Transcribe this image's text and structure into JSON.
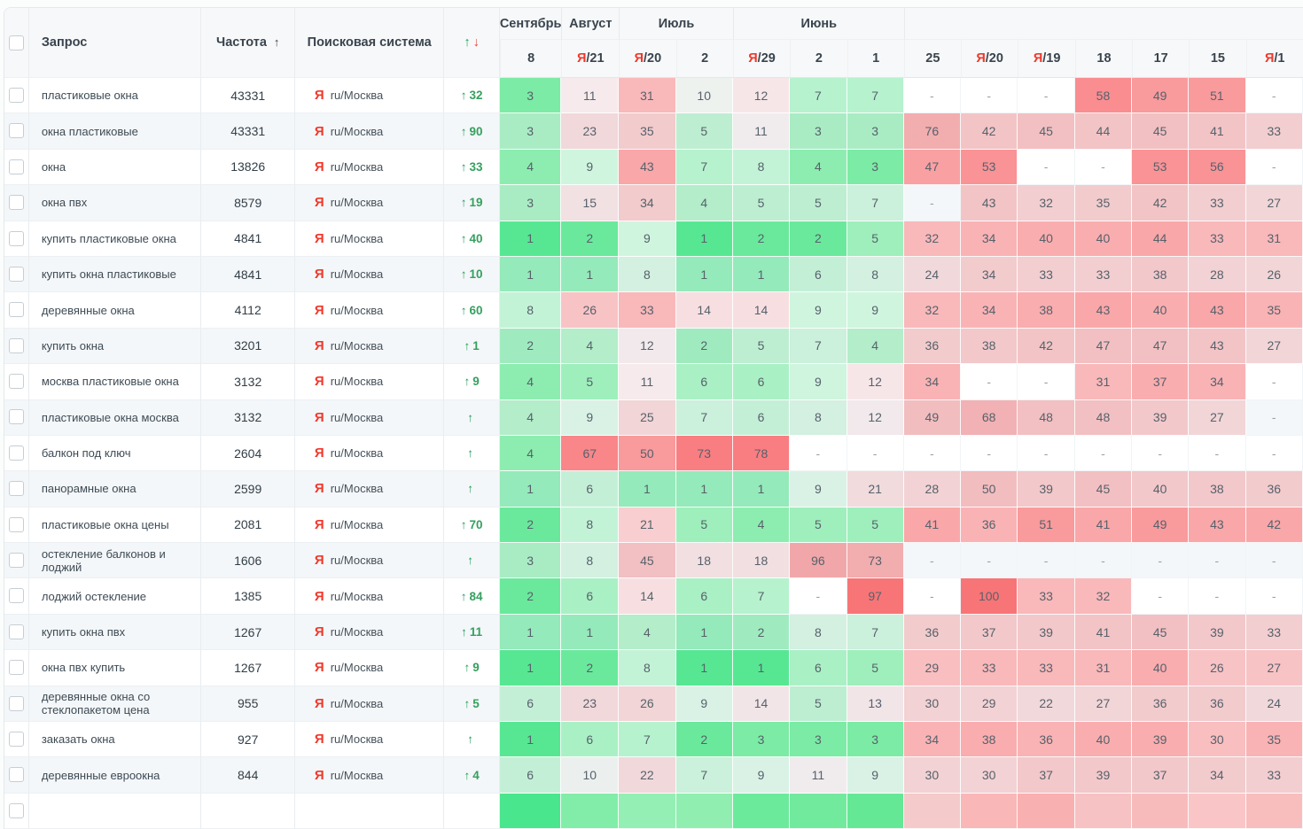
{
  "table": {
    "columns": {
      "query": "Запрос",
      "frequency": "Частота",
      "engine": "Поисковая система"
    },
    "sort": {
      "frequency_arrow": "↑",
      "change_up": "↑",
      "change_down": "↓"
    },
    "engine_icon": "Я",
    "colors": {
      "best_green": "#57e793",
      "worst_red": "#f87577",
      "yandex_red": "#f0382b",
      "change_green": "#23a05a",
      "sort_down_red": "#e8483c",
      "stripe": "#f4f7f9"
    },
    "heat_stops": [
      [
        1,
        "#57e793"
      ],
      [
        2,
        "#6ae99c"
      ],
      [
        3,
        "#7ceba5"
      ],
      [
        4,
        "#8dedb0"
      ],
      [
        5,
        "#9eefbc"
      ],
      [
        6,
        "#aaf0c5"
      ],
      [
        7,
        "#b6f2ce"
      ],
      [
        8,
        "#c3f3d7"
      ],
      [
        9,
        "#cff5df"
      ],
      [
        10,
        "#edf2ee"
      ],
      [
        11,
        "#f6eaec"
      ],
      [
        12,
        "#f7e6e8"
      ],
      [
        14,
        "#f7dfe1"
      ],
      [
        16,
        "#f8d9db"
      ],
      [
        18,
        "#f8d4d6"
      ],
      [
        21,
        "#f8ced0"
      ],
      [
        24,
        "#f8c8ca"
      ],
      [
        27,
        "#f8c3c5"
      ],
      [
        30,
        "#f9bec0"
      ],
      [
        33,
        "#f9b8ba"
      ],
      [
        36,
        "#f9b3b5"
      ],
      [
        40,
        "#f9adaf"
      ],
      [
        44,
        "#f9a7a9"
      ],
      [
        48,
        "#f9a0a2"
      ],
      [
        52,
        "#f99a9c"
      ],
      [
        56,
        "#f99396"
      ],
      [
        60,
        "#f98d90"
      ],
      [
        68,
        "#f98689"
      ],
      [
        78,
        "#f97e81"
      ],
      [
        200,
        "#f87577"
      ]
    ],
    "months": [
      {
        "label": "Сентябрь",
        "span": 1
      },
      {
        "label": "Август",
        "span": 1
      },
      {
        "label": "Июль",
        "span": 2
      },
      {
        "label": "Июнь",
        "span": 3
      },
      {
        "label": "",
        "span": 7
      }
    ],
    "dates": [
      {
        "update": false,
        "day": "8"
      },
      {
        "update": true,
        "day": "21"
      },
      {
        "update": true,
        "day": "20"
      },
      {
        "update": false,
        "day": "2"
      },
      {
        "update": true,
        "day": "29"
      },
      {
        "update": false,
        "day": "2"
      },
      {
        "update": false,
        "day": "1"
      },
      {
        "update": false,
        "day": "25"
      },
      {
        "update": true,
        "day": "20"
      },
      {
        "update": true,
        "day": "19"
      },
      {
        "update": false,
        "day": "18"
      },
      {
        "update": false,
        "day": "17"
      },
      {
        "update": false,
        "day": "15"
      },
      {
        "update": true,
        "day": "1"
      }
    ],
    "rows": [
      {
        "query": "пластиковые окна",
        "frequency": "43331",
        "engine": "ru/Москва",
        "change": "32",
        "positions": [
          "3",
          "11",
          "31",
          "10",
          "12",
          "7",
          "7",
          "-",
          "-",
          "-",
          "58",
          "49",
          "51",
          "-"
        ]
      },
      {
        "query": "окна пластиковые",
        "frequency": "43331",
        "engine": "ru/Москва",
        "change": "90",
        "positions": [
          "3",
          "23",
          "35",
          "5",
          "11",
          "3",
          "3",
          "76",
          "42",
          "45",
          "44",
          "45",
          "41",
          "33"
        ]
      },
      {
        "query": "окна",
        "frequency": "13826",
        "engine": "ru/Москва",
        "change": "33",
        "positions": [
          "4",
          "9",
          "43",
          "7",
          "8",
          "4",
          "3",
          "47",
          "53",
          "-",
          "-",
          "53",
          "56",
          "-"
        ]
      },
      {
        "query": "окна пвх",
        "frequency": "8579",
        "engine": "ru/Москва",
        "change": "19",
        "positions": [
          "3",
          "15",
          "34",
          "4",
          "5",
          "5",
          "7",
          "-",
          "43",
          "32",
          "35",
          "42",
          "33",
          "27"
        ]
      },
      {
        "query": "купить пластиковые окна",
        "frequency": "4841",
        "engine": "ru/Москва",
        "change": "40",
        "positions": [
          "1",
          "2",
          "9",
          "1",
          "2",
          "2",
          "5",
          "32",
          "34",
          "40",
          "40",
          "44",
          "33",
          "31"
        ]
      },
      {
        "query": "купить окна пластиковые",
        "frequency": "4841",
        "engine": "ru/Москва",
        "change": "10",
        "positions": [
          "1",
          "1",
          "8",
          "1",
          "1",
          "6",
          "8",
          "24",
          "34",
          "33",
          "33",
          "38",
          "28",
          "26"
        ]
      },
      {
        "query": "деревянные окна",
        "frequency": "4112",
        "engine": "ru/Москва",
        "change": "60",
        "positions": [
          "8",
          "26",
          "33",
          "14",
          "14",
          "9",
          "9",
          "32",
          "34",
          "38",
          "43",
          "40",
          "43",
          "35"
        ]
      },
      {
        "query": "купить окна",
        "frequency": "3201",
        "engine": "ru/Москва",
        "change": "1",
        "positions": [
          "2",
          "4",
          "12",
          "2",
          "5",
          "7",
          "4",
          "36",
          "38",
          "42",
          "47",
          "47",
          "43",
          "27"
        ]
      },
      {
        "query": "москва пластиковые окна",
        "frequency": "3132",
        "engine": "ru/Москва",
        "change": "9",
        "positions": [
          "4",
          "5",
          "11",
          "6",
          "6",
          "9",
          "12",
          "34",
          "-",
          "-",
          "31",
          "37",
          "34",
          "-"
        ]
      },
      {
        "query": "пластиковые окна москва",
        "frequency": "3132",
        "engine": "ru/Москва",
        "change": "",
        "positions": [
          "4",
          "9",
          "25",
          "7",
          "6",
          "8",
          "12",
          "49",
          "68",
          "48",
          "48",
          "39",
          "27",
          "-"
        ]
      },
      {
        "query": "балкон под ключ",
        "frequency": "2604",
        "engine": "ru/Москва",
        "change": "",
        "positions": [
          "4",
          "67",
          "50",
          "73",
          "78",
          "-",
          "-",
          "-",
          "-",
          "-",
          "-",
          "-",
          "-",
          "-"
        ]
      },
      {
        "query": "панорамные окна",
        "frequency": "2599",
        "engine": "ru/Москва",
        "change": "",
        "positions": [
          "1",
          "6",
          "1",
          "1",
          "1",
          "9",
          "21",
          "28",
          "50",
          "39",
          "45",
          "40",
          "38",
          "36"
        ]
      },
      {
        "query": "пластиковые окна цены",
        "frequency": "2081",
        "engine": "ru/Москва",
        "change": "70",
        "positions": [
          "2",
          "8",
          "21",
          "5",
          "4",
          "5",
          "5",
          "41",
          "36",
          "51",
          "41",
          "49",
          "43",
          "42"
        ]
      },
      {
        "query": "остекление балконов и лоджий",
        "frequency": "1606",
        "engine": "ru/Москва",
        "change": "",
        "positions": [
          "3",
          "8",
          "45",
          "18",
          "18",
          "96",
          "73",
          "-",
          "-",
          "-",
          "-",
          "-",
          "-",
          "-"
        ]
      },
      {
        "query": "лоджий остекление",
        "frequency": "1385",
        "engine": "ru/Москва",
        "change": "84",
        "positions": [
          "2",
          "6",
          "14",
          "6",
          "7",
          "-",
          "97",
          "-",
          "100",
          "33",
          "32",
          "-",
          "-",
          "-"
        ]
      },
      {
        "query": "купить окна пвх",
        "frequency": "1267",
        "engine": "ru/Москва",
        "change": "11",
        "positions": [
          "1",
          "1",
          "4",
          "1",
          "2",
          "8",
          "7",
          "36",
          "37",
          "39",
          "41",
          "45",
          "39",
          "33"
        ]
      },
      {
        "query": "окна пвх купить",
        "frequency": "1267",
        "engine": "ru/Москва",
        "change": "9",
        "positions": [
          "1",
          "2",
          "8",
          "1",
          "1",
          "6",
          "5",
          "29",
          "33",
          "33",
          "31",
          "40",
          "26",
          "27"
        ]
      },
      {
        "query": "деревянные окна со стеклопакетом цена",
        "frequency": "955",
        "engine": "ru/Москва",
        "change": "5",
        "positions": [
          "6",
          "23",
          "26",
          "9",
          "14",
          "5",
          "13",
          "30",
          "29",
          "22",
          "27",
          "36",
          "36",
          "24"
        ]
      },
      {
        "query": "заказать окна",
        "frequency": "927",
        "engine": "ru/Москва",
        "change": "",
        "positions": [
          "1",
          "6",
          "7",
          "2",
          "3",
          "3",
          "3",
          "34",
          "38",
          "36",
          "40",
          "39",
          "30",
          "35"
        ]
      },
      {
        "query": "деревянные евроокна",
        "frequency": "844",
        "engine": "ru/Москва",
        "change": "4",
        "positions": [
          "6",
          "10",
          "22",
          "7",
          "9",
          "11",
          "9",
          "30",
          "30",
          "37",
          "39",
          "37",
          "34",
          "33"
        ]
      }
    ],
    "partial_row_colors": [
      "#4ae68d",
      "#82eda8",
      "#93efb4",
      "#90eeb1",
      "#6cea9b",
      "#72ea9e",
      "#65e896",
      "#f5caca",
      "#f9b7b8",
      "#f9b0b1",
      "#f7c2c3",
      "#f8bbbc",
      "#f9c5c6",
      "#f8bdbd"
    ]
  }
}
